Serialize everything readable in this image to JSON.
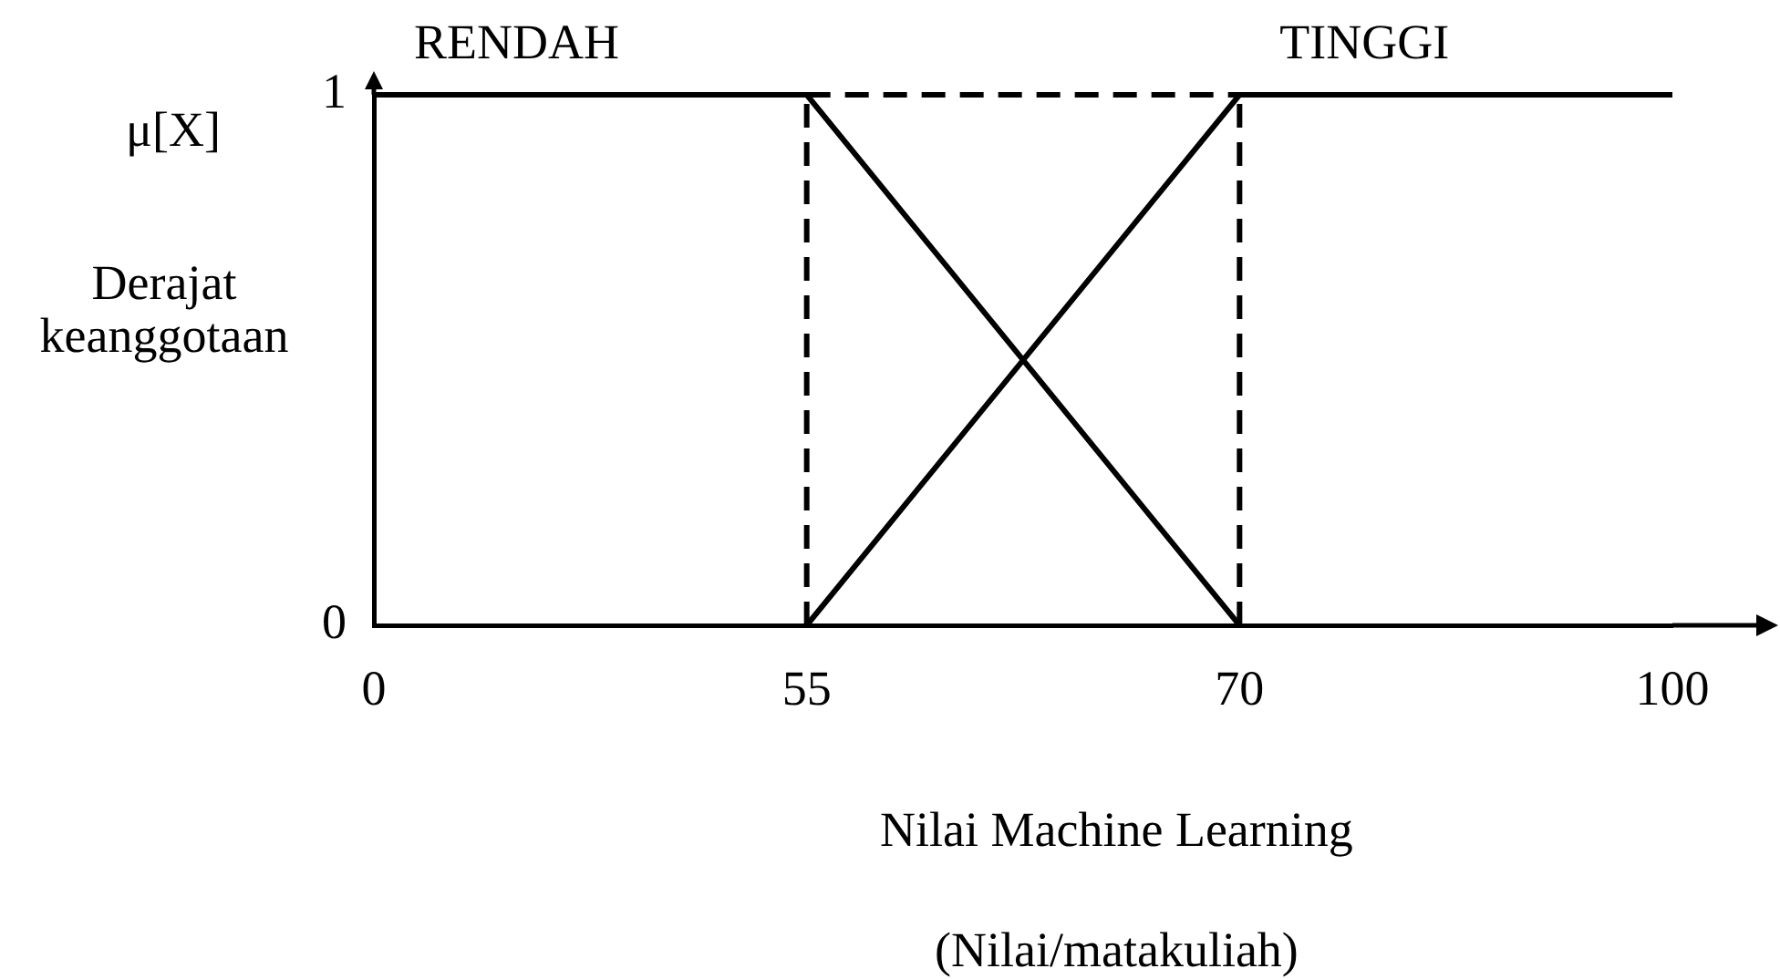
{
  "chart_data": {
    "type": "line",
    "categories": [
      "0",
      "55",
      "70",
      "100"
    ],
    "series": [
      {
        "name": "RENDAH",
        "color": "#000000",
        "values": [
          1,
          1,
          0,
          null
        ]
      },
      {
        "name": "TINGGI",
        "color": "#000000",
        "values": [
          null,
          0,
          1,
          1
        ]
      },
      {
        "color": "#000000",
        "line_style": "dashed",
        "values": [
          null,
          1,
          1,
          null
        ]
      }
    ],
    "ylim": [
      0,
      1
    ],
    "yticks": [
      0,
      1
    ],
    "xlabel": "Nilai Machine Learning",
    "ylabel": "μ[X]",
    "annotations": [
      "Derajat keanggotaan",
      "(Nilai/matakuliah)"
    ],
    "ref_lines": [
      {
        "axis": "x",
        "value": "55",
        "color": "#000000",
        "line_style": "dashed"
      },
      {
        "axis": "x",
        "value": "70",
        "color": "#000000",
        "line_style": "dashed"
      }
    ],
    "grid": false,
    "legend": false,
    "marker": "none"
  }
}
